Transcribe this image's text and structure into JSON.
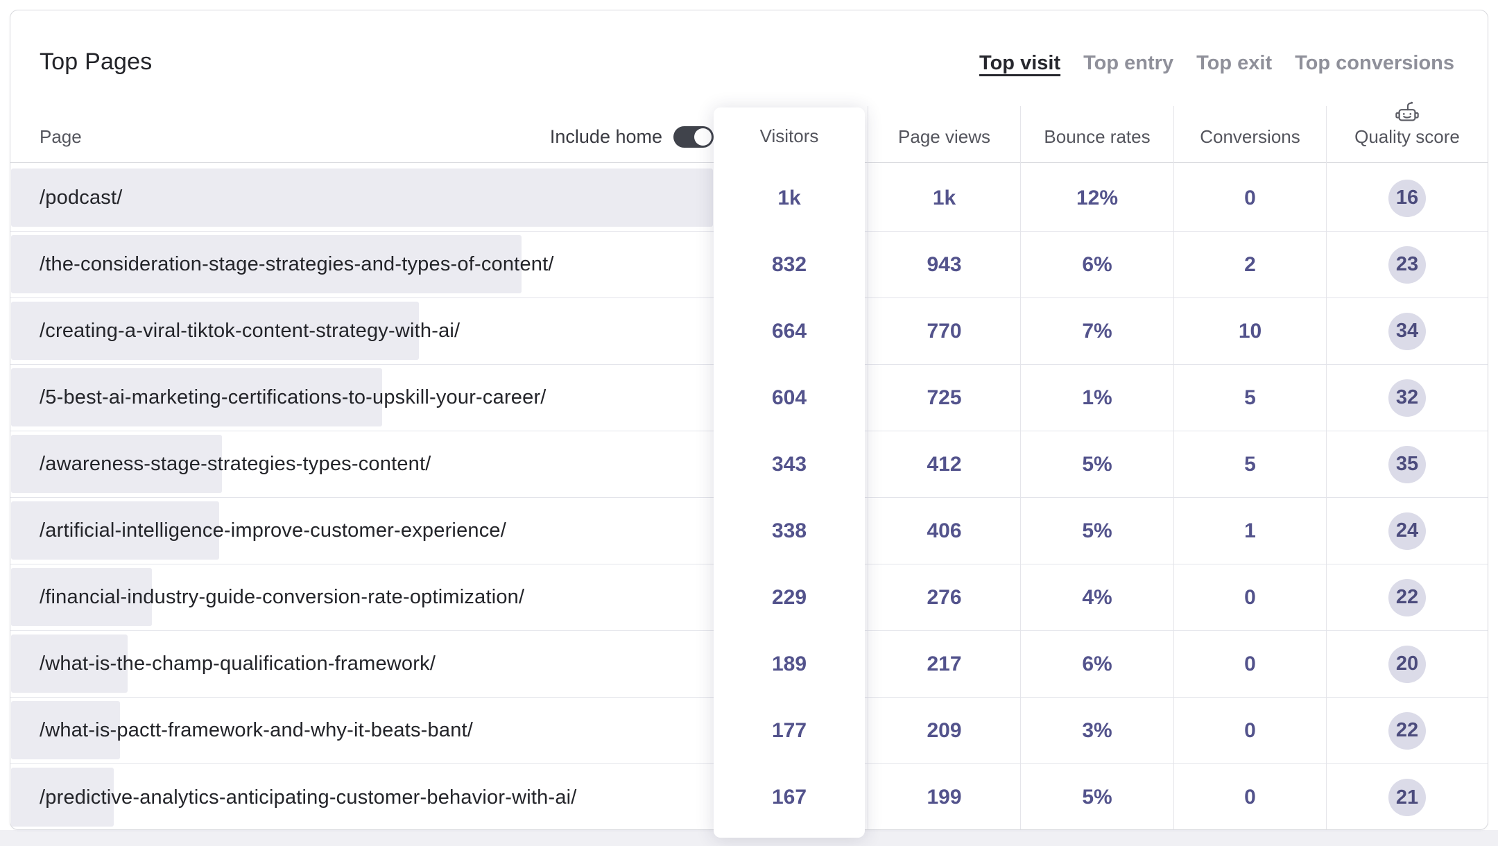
{
  "title": "Top Pages",
  "tabs": [
    {
      "label": "Top visit",
      "active": true
    },
    {
      "label": "Top entry",
      "active": false
    },
    {
      "label": "Top exit",
      "active": false
    },
    {
      "label": "Top conversions",
      "active": false
    }
  ],
  "controls": {
    "include_home_label": "Include home",
    "include_home_on": true
  },
  "table": {
    "page_column_header": "Page",
    "metric_headers": [
      "Visitors",
      "Page views",
      "Bounce rates",
      "Conversions",
      "Quality score"
    ],
    "quality_icon": "robot-icon",
    "rows": [
      {
        "page": "/podcast/",
        "visitors": "1k",
        "page_views": "1k",
        "bounce_rate": "12%",
        "conversions": "0",
        "quality_score": "16",
        "bar_pct": 100
      },
      {
        "page": "/the-consideration-stage-strategies-and-types-of-content/",
        "visitors": "832",
        "page_views": "943",
        "bounce_rate": "6%",
        "conversions": "2",
        "quality_score": "23",
        "bar_pct": 72.7
      },
      {
        "page": "/creating-a-viral-tiktok-content-strategy-with-ai/",
        "visitors": "664",
        "page_views": "770",
        "bounce_rate": "7%",
        "conversions": "10",
        "quality_score": "34",
        "bar_pct": 58.1
      },
      {
        "page": "/5-best-ai-marketing-certifications-to-upskill-your-career/",
        "visitors": "604",
        "page_views": "725",
        "bounce_rate": "1%",
        "conversions": "5",
        "quality_score": "32",
        "bar_pct": 52.9
      },
      {
        "page": "/awareness-stage-strategies-types-content/",
        "visitors": "343",
        "page_views": "412",
        "bounce_rate": "5%",
        "conversions": "5",
        "quality_score": "35",
        "bar_pct": 30.0
      },
      {
        "page": "/artificial-intelligence-improve-customer-experience/",
        "visitors": "338",
        "page_views": "406",
        "bounce_rate": "5%",
        "conversions": "1",
        "quality_score": "24",
        "bar_pct": 29.6
      },
      {
        "page": "/financial-industry-guide-conversion-rate-optimization/",
        "visitors": "229",
        "page_views": "276",
        "bounce_rate": "4%",
        "conversions": "0",
        "quality_score": "22",
        "bar_pct": 20.1
      },
      {
        "page": "/what-is-the-champ-qualification-framework/",
        "visitors": "189",
        "page_views": "217",
        "bounce_rate": "6%",
        "conversions": "0",
        "quality_score": "20",
        "bar_pct": 16.6
      },
      {
        "page": "/what-is-pactt-framework-and-why-it-beats-bant/",
        "visitors": "177",
        "page_views": "209",
        "bounce_rate": "3%",
        "conversions": "0",
        "quality_score": "22",
        "bar_pct": 15.5
      },
      {
        "page": "/predictive-analytics-anticipating-customer-behavior-with-ai/",
        "visitors": "167",
        "page_views": "199",
        "bounce_rate": "5%",
        "conversions": "0",
        "quality_score": "21",
        "bar_pct": 14.6
      }
    ]
  },
  "colors": {
    "value_text": "#53538c",
    "badge_bg": "#dbdbe8",
    "badge_text": "#4c4c7d",
    "bar_fill": "#ebebf1",
    "toggle_on_bg": "#40434b",
    "active_tab": "#26272d",
    "inactive_tab": "#8f909a",
    "header_text": "#54555d",
    "page_text": "#232429",
    "bottom_strip_bg": "#f0f0f4"
  }
}
